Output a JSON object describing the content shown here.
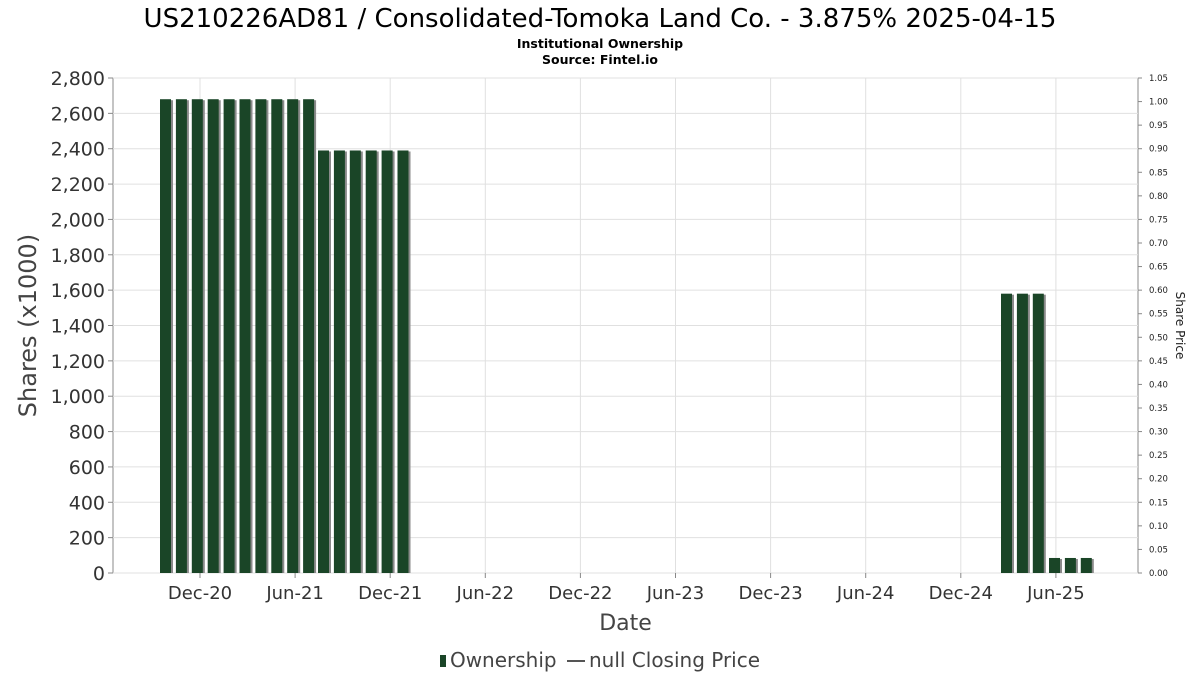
{
  "header": {
    "title": "US210226AD81 / Consolidated-Tomoka Land Co. - 3.875% 2025-04-15",
    "subtitle": "Institutional Ownership",
    "source": "Source: Fintel.io"
  },
  "legend": {
    "ownership_label": "Ownership",
    "price_label": "null Closing Price"
  },
  "colors": {
    "bar": "#1a4527",
    "bar_shadow": "#8a8a8a",
    "grid": "#e0e0e0",
    "axis": "#888888"
  },
  "chart_data": {
    "type": "bar",
    "xlabel": "Date",
    "ylabel": "Shares (x1000)",
    "y2label": "Share Price",
    "ylim": [
      0,
      2800
    ],
    "y2lim": [
      0,
      1.05
    ],
    "yticks": [
      "0",
      "200",
      "400",
      "600",
      "800",
      "1,000",
      "1,200",
      "1,400",
      "1,600",
      "1,800",
      "2,000",
      "2,200",
      "2,400",
      "2,600",
      "2,800"
    ],
    "y2ticks": [
      "0.00",
      "0.05",
      "0.10",
      "0.15",
      "0.20",
      "0.25",
      "0.30",
      "0.35",
      "0.40",
      "0.45",
      "0.50",
      "0.55",
      "0.60",
      "0.65",
      "0.70",
      "0.75",
      "0.80",
      "0.85",
      "0.90",
      "0.95",
      "1.00",
      "1.05"
    ],
    "xticks": [
      "Dec-20",
      "Jun-21",
      "Dec-21",
      "Jun-22",
      "Dec-22",
      "Jun-23",
      "Dec-23",
      "Jun-24",
      "Dec-24",
      "Jun-25"
    ],
    "series": [
      {
        "name": "Ownership",
        "values": [
          2680,
          2680,
          2680,
          2680,
          2680,
          2680,
          2680,
          2680,
          2680,
          2680,
          2390,
          2390,
          2390,
          2390,
          2390,
          2390,
          1580,
          1580,
          1580,
          85,
          85,
          85
        ]
      }
    ],
    "grid": true,
    "legend_position": "bottom"
  }
}
